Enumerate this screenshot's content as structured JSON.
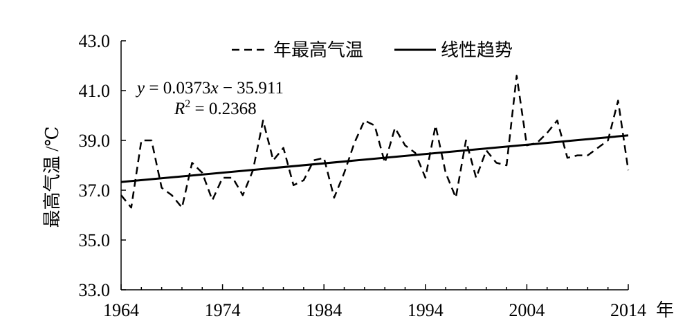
{
  "chart_data": {
    "type": "line",
    "title": "",
    "xlabel": "年",
    "ylabel": "最高气温 /℃",
    "xlim": [
      1964,
      2014
    ],
    "ylim": [
      33.0,
      43.0
    ],
    "x_ticks": [
      1964,
      1974,
      1984,
      1994,
      2004,
      2014
    ],
    "x_tick_labels": [
      "1964",
      "1974",
      "1984",
      "1994",
      "2004",
      "2014"
    ],
    "y_ticks": [
      33.0,
      35.0,
      37.0,
      39.0,
      41.0,
      43.0
    ],
    "y_tick_labels": [
      "33.0",
      "35.0",
      "37.0",
      "39.0",
      "41.0",
      "43.0"
    ],
    "legend_position": "top-right",
    "series": [
      {
        "name": "年最高气温",
        "style": "dashed",
        "color": "#000000",
        "x": [
          1964,
          1965,
          1966,
          1967,
          1968,
          1969,
          1970,
          1971,
          1972,
          1973,
          1974,
          1975,
          1976,
          1977,
          1978,
          1979,
          1980,
          1981,
          1982,
          1983,
          1984,
          1985,
          1986,
          1987,
          1988,
          1989,
          1990,
          1991,
          1992,
          1993,
          1994,
          1995,
          1996,
          1997,
          1998,
          1999,
          2000,
          2001,
          2002,
          2003,
          2004,
          2005,
          2006,
          2007,
          2008,
          2009,
          2010,
          2011,
          2012,
          2013,
          2014
        ],
        "values": [
          36.8,
          36.3,
          39.0,
          39.0,
          37.1,
          36.8,
          36.3,
          38.1,
          37.7,
          36.6,
          37.5,
          37.5,
          36.8,
          37.8,
          39.8,
          38.2,
          38.7,
          37.2,
          37.4,
          38.2,
          38.3,
          36.7,
          37.7,
          38.9,
          39.8,
          39.6,
          38.1,
          39.5,
          38.8,
          38.5,
          37.5,
          39.6,
          37.7,
          36.7,
          39.0,
          37.5,
          38.6,
          38.1,
          38.0,
          41.6,
          38.8,
          38.9,
          39.3,
          39.8,
          38.3,
          38.4,
          38.4,
          38.7,
          39.0,
          40.6,
          37.8
        ]
      },
      {
        "name": "线性趋势",
        "style": "solid",
        "color": "#000000",
        "x": [
          1964,
          2014
        ],
        "values": [
          37.33,
          39.2
        ]
      }
    ],
    "annotations": {
      "equation_y": "y",
      "equation_rest": " = 0.0373",
      "equation_x": "x",
      "equation_tail": " − 35.911",
      "r2_label": "R",
      "r2_sup": "2",
      "r2_rest": " = 0.2368"
    }
  }
}
